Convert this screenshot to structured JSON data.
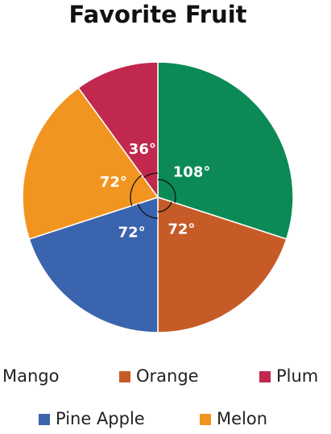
{
  "chart_data": {
    "type": "pie",
    "title": "Favorite Fruit",
    "categories": [
      "Mango",
      "Orange",
      "Pine Apple",
      "Melon",
      "Plum"
    ],
    "values": [
      108,
      72,
      72,
      72,
      36
    ],
    "value_labels": [
      "108°",
      "72°",
      "72°",
      "72°",
      "36°"
    ],
    "colors": [
      "#0b8a56",
      "#c75b27",
      "#3a64ad",
      "#f29520",
      "#c1284d"
    ]
  }
}
